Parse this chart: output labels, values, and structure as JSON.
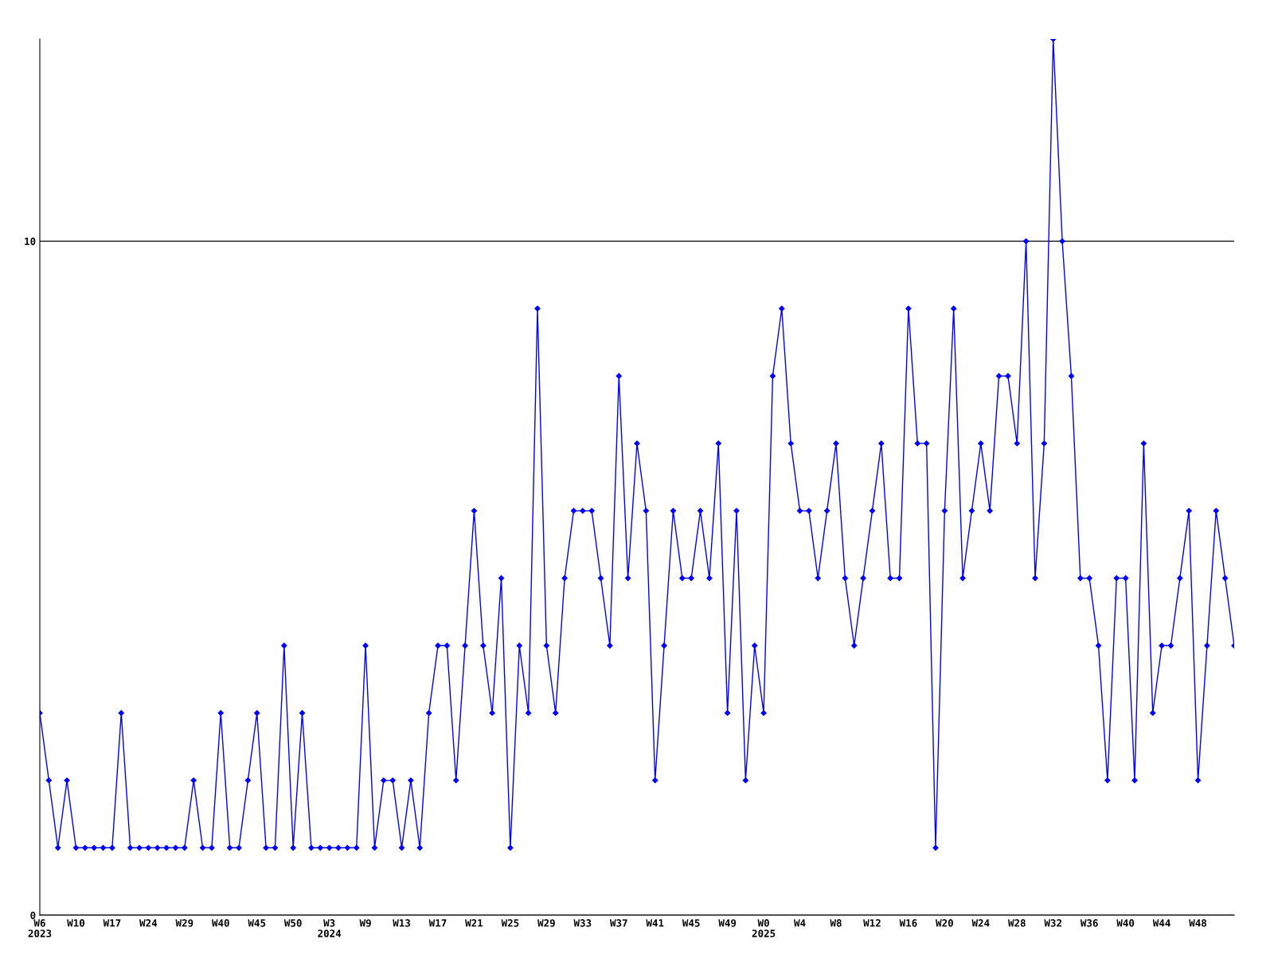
{
  "chart_data": {
    "type": "line",
    "categories": [
      "W6\n2023",
      null,
      null,
      null,
      "W10",
      null,
      null,
      null,
      "W17",
      null,
      null,
      null,
      "W24",
      null,
      null,
      null,
      "W29",
      null,
      null,
      null,
      "W40",
      null,
      null,
      null,
      "W45",
      null,
      null,
      null,
      "W50",
      null,
      null,
      null,
      "W3\n2024",
      null,
      null,
      null,
      "W9",
      null,
      null,
      null,
      "W13",
      null,
      null,
      null,
      "W17",
      null,
      null,
      null,
      "W21",
      null,
      null,
      null,
      "W25",
      null,
      null,
      null,
      "W29",
      null,
      null,
      null,
      "W33",
      null,
      null,
      null,
      "W37",
      null,
      null,
      null,
      "W41",
      null,
      null,
      null,
      "W45",
      null,
      null,
      null,
      "W49",
      null,
      null,
      null,
      "W0\n2025",
      null,
      null,
      null,
      "W4",
      null,
      null,
      null,
      "W8",
      null,
      null,
      null,
      "W12",
      null,
      null,
      null,
      "W16",
      null,
      null,
      null,
      "W20",
      null,
      null,
      null,
      "W24",
      null,
      null,
      null,
      "W28",
      null,
      null,
      null,
      "W32",
      null,
      null,
      null,
      "W36",
      null,
      null,
      null,
      "W40",
      null,
      null,
      null,
      "W44",
      null,
      null,
      null,
      "W48",
      null,
      null,
      null,
      null
    ],
    "series": [
      {
        "color": "#0000ff",
        "values": [
          3,
          2,
          1,
          2,
          1,
          1,
          1,
          1,
          1,
          3,
          1,
          1,
          1,
          1,
          1,
          1,
          1,
          2,
          1,
          1,
          3,
          1,
          1,
          2,
          3,
          1,
          1,
          4,
          1,
          3,
          1,
          1,
          1,
          1,
          1,
          1,
          4,
          1,
          2,
          2,
          1,
          2,
          1,
          3,
          4,
          4,
          2,
          4,
          6,
          4,
          3,
          5,
          1,
          4,
          3,
          9,
          4,
          3,
          5,
          6,
          6,
          6,
          5,
          4,
          8,
          5,
          7,
          6,
          2,
          4,
          6,
          5,
          5,
          6,
          5,
          7,
          3,
          6,
          2,
          4,
          3,
          8,
          9,
          7,
          6,
          6,
          5,
          6,
          7,
          5,
          4,
          5,
          6,
          7,
          5,
          5,
          9,
          7,
          7,
          1,
          6,
          9,
          5,
          6,
          7,
          6,
          8,
          8,
          7,
          10,
          5,
          7,
          13,
          10,
          8,
          5,
          5,
          4,
          2,
          5,
          5,
          2,
          7,
          3,
          4,
          4,
          5,
          6,
          2,
          4,
          6,
          5,
          4
        ]
      }
    ],
    "ylim": [
      0,
      13
    ],
    "yticks": [
      0,
      10
    ],
    "grid": "y",
    "marker": "diamond",
    "line_style": "solid",
    "legend": false
  }
}
